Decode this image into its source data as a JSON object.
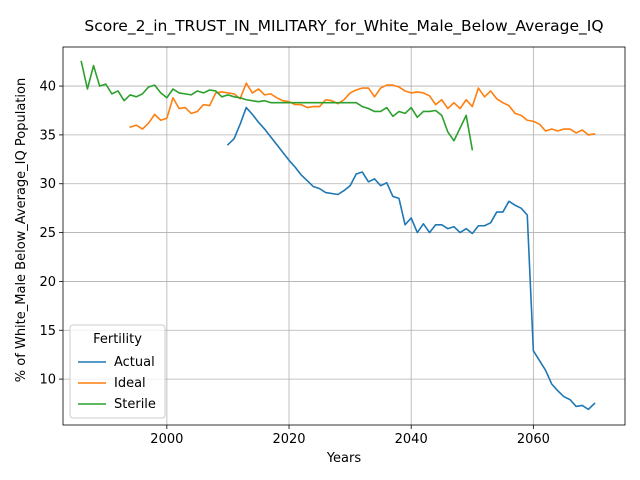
{
  "chart_data": {
    "type": "line",
    "title": "Score_2_in_TRUST_IN_MILITARY_for_White_Male_Below_Average_IQ",
    "xlabel": "Years",
    "ylabel": "% of White_Male Below_Average_IQ Population",
    "xlim": [
      1983,
      2075
    ],
    "ylim": [
      5.3,
      44.0
    ],
    "xticks": [
      2000,
      2020,
      2040,
      2060
    ],
    "yticks": [
      10,
      15,
      20,
      25,
      30,
      35,
      40
    ],
    "grid": true,
    "legend": {
      "title": "Fertility",
      "placement": "lower-left"
    },
    "series": [
      {
        "name": "Actual",
        "color": "#1f77b4",
        "x": [
          2010,
          2011,
          2012,
          2013,
          2014,
          2015,
          2016,
          2017,
          2018,
          2019,
          2020,
          2021,
          2022,
          2023,
          2024,
          2025,
          2026,
          2027,
          2028,
          2029,
          2030,
          2031,
          2032,
          2033,
          2034,
          2035,
          2036,
          2037,
          2038,
          2039,
          2040,
          2041,
          2042,
          2043,
          2044,
          2045,
          2046,
          2047,
          2048,
          2049,
          2050,
          2051,
          2052,
          2053,
          2054,
          2055,
          2056,
          2057,
          2058,
          2059,
          2060,
          2061,
          2062,
          2063,
          2064,
          2065,
          2066,
          2067,
          2068,
          2069,
          2070
        ],
        "y": [
          34.0,
          34.6,
          36.1,
          37.8,
          37.1,
          36.3,
          35.6,
          34.8,
          34.0,
          33.2,
          32.4,
          31.7,
          30.9,
          30.3,
          29.7,
          29.5,
          29.1,
          29.0,
          28.9,
          29.3,
          29.8,
          31.0,
          31.2,
          30.2,
          30.5,
          29.8,
          30.1,
          28.7,
          28.5,
          25.8,
          26.5,
          25.0,
          25.9,
          25.0,
          25.8,
          25.8,
          25.4,
          25.6,
          25.0,
          25.4,
          24.9,
          25.7,
          25.7,
          26.0,
          27.1,
          27.1,
          28.2,
          27.8,
          27.5,
          26.8,
          12.9,
          11.9,
          10.9,
          9.5,
          8.8,
          8.2,
          7.9,
          7.2,
          7.3,
          6.9,
          7.5
        ]
      },
      {
        "name": "Ideal",
        "color": "#ff7f0e",
        "x": [
          1994,
          1995,
          1996,
          1997,
          1998,
          1999,
          2000,
          2001,
          2002,
          2003,
          2004,
          2005,
          2006,
          2007,
          2008,
          2009,
          2010,
          2011,
          2012,
          2013,
          2014,
          2015,
          2016,
          2017,
          2018,
          2019,
          2020,
          2021,
          2022,
          2023,
          2024,
          2025,
          2026,
          2027,
          2028,
          2029,
          2030,
          2031,
          2032,
          2033,
          2034,
          2035,
          2036,
          2037,
          2038,
          2039,
          2040,
          2041,
          2042,
          2043,
          2044,
          2045,
          2046,
          2047,
          2048,
          2049,
          2050,
          2051,
          2052,
          2053,
          2054,
          2055,
          2056,
          2057,
          2058,
          2059,
          2060,
          2061,
          2062,
          2063,
          2064,
          2065,
          2066,
          2067,
          2068,
          2069,
          2070
        ],
        "y": [
          35.8,
          36.0,
          35.6,
          36.2,
          37.1,
          36.5,
          36.7,
          38.8,
          37.7,
          37.8,
          37.2,
          37.4,
          38.1,
          38.0,
          39.3,
          39.4,
          39.3,
          39.2,
          38.7,
          40.3,
          39.3,
          39.7,
          39.1,
          39.2,
          38.8,
          38.5,
          38.4,
          38.1,
          38.1,
          37.8,
          37.9,
          37.9,
          38.6,
          38.5,
          38.2,
          38.6,
          39.3,
          39.6,
          39.8,
          39.8,
          38.9,
          39.8,
          40.1,
          40.1,
          39.9,
          39.5,
          39.3,
          39.4,
          39.3,
          39.0,
          38.1,
          38.6,
          37.7,
          38.3,
          37.7,
          38.6,
          37.9,
          39.8,
          38.9,
          39.5,
          38.7,
          38.3,
          38.0,
          37.2,
          37.0,
          36.5,
          36.4,
          36.1,
          35.4,
          35.6,
          35.4,
          35.6,
          35.6,
          35.2,
          35.5,
          35.0,
          35.1
        ]
      },
      {
        "name": "Sterile",
        "color": "#2ca02c",
        "x": [
          1986,
          1987,
          1988,
          1989,
          1990,
          1991,
          1992,
          1993,
          1994,
          1995,
          1996,
          1997,
          1998,
          1999,
          2000,
          2001,
          2002,
          2003,
          2004,
          2005,
          2006,
          2007,
          2008,
          2009,
          2010,
          2011,
          2012,
          2013,
          2014,
          2015,
          2016,
          2017,
          2018,
          2019,
          2020,
          2021,
          2022,
          2023,
          2024,
          2025,
          2026,
          2027,
          2028,
          2029,
          2030,
          2031,
          2032,
          2033,
          2034,
          2035,
          2036,
          2037,
          2038,
          2039,
          2040,
          2041,
          2042,
          2043,
          2044,
          2045,
          2046,
          2047,
          2048,
          2049,
          2050
        ],
        "y": [
          42.5,
          39.7,
          42.1,
          40.0,
          40.2,
          39.2,
          39.5,
          38.5,
          39.1,
          38.9,
          39.2,
          39.9,
          40.1,
          39.3,
          38.8,
          39.7,
          39.3,
          39.2,
          39.1,
          39.5,
          39.3,
          39.6,
          39.5,
          38.9,
          39.1,
          38.9,
          38.8,
          38.6,
          38.5,
          38.4,
          38.5,
          38.3,
          38.3,
          38.3,
          38.3,
          38.3,
          38.3,
          38.3,
          38.3,
          38.3,
          38.3,
          38.3,
          38.3,
          38.3,
          38.3,
          38.3,
          37.9,
          37.7,
          37.4,
          37.4,
          37.8,
          36.9,
          37.4,
          37.2,
          37.8,
          36.8,
          37.4,
          37.4,
          37.5,
          37.0,
          35.3,
          34.4,
          35.7,
          37.0,
          33.5
        ]
      }
    ]
  }
}
